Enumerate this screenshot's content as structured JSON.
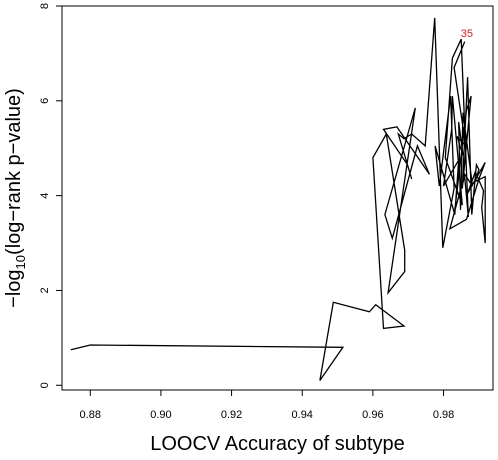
{
  "chart_data": {
    "type": "line",
    "xlabel": "LOOCV Accuracy of subtype",
    "ylabel_main": "−log",
    "ylabel_sub": "10",
    "ylabel_rest": "(log−rank p−value)",
    "xlim": [
      0.872,
      0.994
    ],
    "ylim": [
      -0.1,
      8.0
    ],
    "xticks": [
      0.88,
      0.9,
      0.92,
      0.94,
      0.96,
      0.98
    ],
    "xtick_labels": [
      "0.88",
      "0.90",
      "0.92",
      "0.94",
      "0.96",
      "0.98"
    ],
    "yticks": [
      0,
      2,
      4,
      6,
      8
    ],
    "ytick_labels": [
      "0",
      "2",
      "4",
      "6",
      "8"
    ],
    "grid": false,
    "series": [
      {
        "x": [
          0.8745,
          0.88,
          0.9515,
          0.945,
          0.9488,
          0.959,
          0.9608,
          0.9688,
          0.963,
          0.96,
          0.9638,
          0.969,
          0.969,
          0.9643,
          0.972,
          0.9634,
          0.9655,
          0.9726,
          0.976,
          0.9668,
          0.963,
          0.9698,
          0.971,
          0.9672,
          0.9688,
          0.971,
          0.9748,
          0.9775,
          0.9798,
          0.983,
          0.982,
          0.9788,
          0.9776,
          0.9832,
          0.9843,
          0.98,
          0.9823,
          0.9825,
          0.9853,
          0.9805,
          0.9825,
          0.985,
          0.987,
          0.986,
          0.9832,
          0.9865,
          0.9878,
          0.9853,
          0.9868,
          0.988,
          0.9893,
          0.99,
          0.989,
          0.9918,
          0.9918,
          0.9908,
          0.9913,
          0.989,
          0.9868,
          0.9918,
          0.99,
          0.9865,
          0.9818,
          0.986,
          0.9882,
          0.9855,
          0.9848,
          0.9843,
          0.9855,
          0.9838,
          0.9863,
          0.983,
          0.986
        ],
        "y": [
          0.75,
          0.85,
          0.8,
          0.1,
          1.75,
          1.55,
          1.7,
          1.25,
          1.2,
          4.8,
          5.3,
          2.85,
          2.4,
          1.95,
          5.85,
          3.6,
          3.1,
          5.05,
          4.45,
          5.45,
          5.4,
          4.65,
          4.35,
          5.3,
          5.2,
          5.3,
          5.05,
          7.75,
          2.9,
          4.15,
          6.1,
          4.2,
          5.05,
          3.6,
          4.75,
          4.2,
          5.4,
          6.1,
          3.8,
          4.8,
          6.9,
          7.3,
          3.55,
          4.4,
          3.7,
          5.8,
          6.1,
          4.15,
          6.5,
          3.6,
          4.65,
          4.55,
          4.3,
          4.4,
          3.0,
          3.75,
          4.1,
          4.5,
          4.05,
          4.7,
          4.35,
          3.5,
          3.3,
          4.45,
          4.2,
          5.75,
          3.7,
          5.55,
          4.85,
          5.25,
          5.05,
          6.7,
          7.25
        ]
      }
    ],
    "annotations": [
      {
        "text": "35",
        "x": 0.9866,
        "y": 7.35,
        "color": "#cc2222"
      }
    ]
  }
}
